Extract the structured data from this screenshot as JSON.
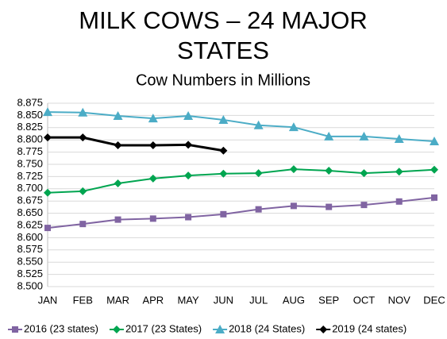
{
  "chart_data": {
    "type": "line",
    "title": "MILK COWS – 24 MAJOR STATES",
    "subtitle": "Cow Numbers in Millions",
    "categories": [
      "JAN",
      "FEB",
      "MAR",
      "APR",
      "MAY",
      "JUN",
      "JUL",
      "AUG",
      "SEP",
      "OCT",
      "NOV",
      "DEC"
    ],
    "series": [
      {
        "name": "2016 (23 states)",
        "color": "#8064a2",
        "marker": "square",
        "values": [
          8.62,
          8.628,
          8.637,
          8.639,
          8.642,
          8.648,
          8.658,
          8.665,
          8.663,
          8.667,
          8.674,
          8.682
        ]
      },
      {
        "name": "2017 (23 States)",
        "color": "#00a550",
        "marker": "diamond",
        "values": [
          8.692,
          8.695,
          8.711,
          8.721,
          8.727,
          8.731,
          8.732,
          8.74,
          8.737,
          8.732,
          8.735,
          8.739
        ]
      },
      {
        "name": "2018 (24 States)",
        "color": "#4bacc6",
        "marker": "triangle",
        "values": [
          8.857,
          8.856,
          8.849,
          8.844,
          8.849,
          8.841,
          8.83,
          8.826,
          8.807,
          8.807,
          8.802,
          8.797
        ]
      },
      {
        "name": "2019 (24 states)",
        "color": "#000000",
        "marker": "diamond",
        "values": [
          8.805,
          8.805,
          8.789,
          8.789,
          8.79,
          8.778,
          null,
          null,
          null,
          null,
          null,
          null
        ]
      }
    ],
    "ylim": [
      8.5,
      8.875
    ],
    "yticks": [
      {
        "value": 8.5,
        "label": "8.500"
      },
      8.525,
      {
        "value": 8.55,
        "label": "8.550"
      },
      8.575,
      {
        "value": 8.6,
        "label": "8.600"
      },
      8.625,
      {
        "value": 8.65,
        "label": "8.650"
      },
      8.675,
      {
        "value": 8.7,
        "label": "8.700"
      },
      8.725,
      {
        "value": 8.75,
        "label": "8.750"
      },
      8.775,
      {
        "value": 8.8,
        "label": "8.800"
      },
      8.825,
      {
        "value": 8.85,
        "label": "8.850"
      },
      8.875
    ],
    "grid": true,
    "legend": "bottom"
  }
}
